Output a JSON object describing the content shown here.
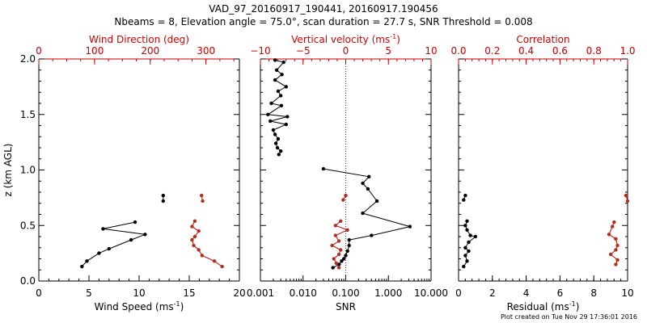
{
  "title_line1": "VAD_97_20160917_190441, 20160917.190456",
  "title_line2": "Nbeams = 8, Elevation angle = 75.0°, scan duration = 27.7 s, SNR Threshold = 0.008",
  "footer": "Plot created on Tue Nov 29 17:36:01 2016",
  "colors": {
    "primary": "#000000",
    "secondary": "#cc0000",
    "secondary_marker": "#b03020"
  },
  "chart_data": [
    {
      "type": "line",
      "ylabel": "z (km AGL)",
      "ylim": [
        0,
        2
      ],
      "yticks": [
        "0.0",
        "0.5",
        "1.0",
        "1.5",
        "2.0"
      ],
      "bottom_axis": {
        "label": "Wind Speed (ms",
        "label_sup": "-1",
        "label_close": ")",
        "lim": [
          0,
          20
        ],
        "ticks": [
          0,
          5,
          10,
          15,
          20
        ],
        "ticklabels": [
          "0",
          "5",
          "10",
          "15",
          "20"
        ]
      },
      "top_axis": {
        "label": "Wind Direction (deg)",
        "label_sup": "",
        "label_close": "",
        "lim": [
          0,
          360
        ],
        "ticks": [
          0,
          100,
          200,
          300
        ],
        "ticklabels": [
          "0",
          "100",
          "200",
          "300"
        ]
      },
      "series": [
        {
          "axis": "bottom",
          "segments": [
            [
              [
                4.3,
                0.13
              ],
              [
                4.8,
                0.18
              ],
              [
                6.0,
                0.25
              ],
              [
                7.0,
                0.29
              ],
              [
                9.2,
                0.37
              ],
              [
                10.6,
                0.42
              ],
              [
                6.4,
                0.47
              ],
              [
                9.6,
                0.53
              ]
            ],
            [
              [
                12.4,
                0.72
              ],
              [
                12.4,
                0.77
              ]
            ]
          ]
        },
        {
          "axis": "top",
          "segments": [
            [
              [
                329,
                0.13
              ],
              [
                315,
                0.18
              ],
              [
                293,
                0.23
              ],
              [
                287,
                0.28
              ],
              [
                278,
                0.32
              ],
              [
                275,
                0.37
              ],
              [
                280,
                0.4
              ],
              [
                287,
                0.45
              ],
              [
                275,
                0.49
              ],
              [
                280,
                0.54
              ]
            ],
            [
              [
                294,
                0.72
              ],
              [
                292,
                0.77
              ]
            ]
          ]
        }
      ]
    },
    {
      "type": "line",
      "ylabel": "",
      "ylim": [
        0,
        2
      ],
      "bottom_axis": {
        "label": "SNR",
        "label_sup": "",
        "label_close": "",
        "log": true,
        "lim": [
          0.001,
          10
        ],
        "ticks": [
          0.001,
          0.01,
          0.1,
          1,
          10
        ],
        "ticklabels": [
          "0.001",
          "0.010",
          "0.100",
          "1.000",
          "10.000"
        ]
      },
      "top_axis": {
        "label": "Vertical velocity (ms",
        "label_sup": "-1",
        "label_close": ")",
        "lim": [
          -10,
          10
        ],
        "ticks": [
          -10,
          -5,
          0,
          5,
          10
        ],
        "ticklabels": [
          "−10",
          "−5",
          "0",
          "5",
          "10"
        ]
      },
      "reference_line": {
        "axis": "bottom",
        "value": 0.1
      },
      "series": [
        {
          "axis": "bottom",
          "segments": [
            [
              [
                0.0022,
                1.99
              ],
              [
                0.0035,
                1.97
              ],
              [
                0.0024,
                1.9
              ],
              [
                0.0032,
                1.86
              ],
              [
                0.0022,
                1.81
              ],
              [
                0.004,
                1.75
              ],
              [
                0.0026,
                1.71
              ],
              [
                0.003,
                1.67
              ],
              [
                0.0018,
                1.6
              ],
              [
                0.0031,
                1.58
              ],
              [
                0.0015,
                1.5
              ],
              [
                0.0043,
                1.48
              ],
              [
                0.0017,
                1.44
              ],
              [
                0.004,
                1.41
              ],
              [
                0.002,
                1.36
              ],
              [
                0.0022,
                1.32
              ],
              [
                0.0026,
                1.28
              ],
              [
                0.0023,
                1.24
              ],
              [
                0.0025,
                1.2
              ],
              [
                0.003,
                1.17
              ],
              [
                0.0027,
                1.14
              ]
            ],
            [
              [
                0.03,
                1.01
              ],
              [
                0.35,
                0.94
              ],
              [
                0.25,
                0.88
              ],
              [
                0.33,
                0.83
              ],
              [
                0.54,
                0.72
              ],
              [
                0.25,
                0.61
              ],
              [
                3.2,
                0.49
              ],
              [
                0.4,
                0.41
              ],
              [
                0.12,
                0.37
              ],
              [
                0.12,
                0.32
              ],
              [
                0.11,
                0.27
              ],
              [
                0.1,
                0.23
              ],
              [
                0.09,
                0.2
              ],
              [
                0.08,
                0.18
              ],
              [
                0.07,
                0.15
              ],
              [
                0.05,
                0.12
              ]
            ]
          ]
        },
        {
          "axis": "top",
          "segments": [
            [
              [
                0.0,
                0.77
              ],
              [
                -0.3,
                0.73
              ]
            ],
            [
              [
                -0.6,
                0.54
              ],
              [
                -1.2,
                0.5
              ],
              [
                0.2,
                0.46
              ],
              [
                -1.2,
                0.41
              ],
              [
                -0.8,
                0.36
              ],
              [
                -1.6,
                0.32
              ],
              [
                -0.6,
                0.28
              ],
              [
                -0.8,
                0.24
              ],
              [
                -1.4,
                0.2
              ],
              [
                -1.1,
                0.16
              ],
              [
                -0.8,
                0.12
              ]
            ]
          ]
        }
      ]
    },
    {
      "type": "line",
      "ylabel": "",
      "ylim": [
        0,
        2
      ],
      "bottom_axis": {
        "label": "Residual (ms",
        "label_sup": "-1",
        "label_close": ")",
        "lim": [
          0,
          10
        ],
        "ticks": [
          0,
          2,
          4,
          6,
          8,
          10
        ],
        "ticklabels": [
          "0",
          "2",
          "4",
          "6",
          "8",
          "10"
        ]
      },
      "top_axis": {
        "label": "Correlation",
        "label_sup": "",
        "label_close": "",
        "lim": [
          0,
          1
        ],
        "ticks": [
          0,
          0.2,
          0.4,
          0.6,
          0.8,
          1.0
        ],
        "ticklabels": [
          "0.0",
          "0.2",
          "0.4",
          "0.6",
          "0.8",
          "1.0"
        ]
      },
      "series": [
        {
          "axis": "bottom",
          "segments": [
            [
              [
                0.4,
                0.77
              ],
              [
                0.3,
                0.73
              ]
            ],
            [
              [
                0.5,
                0.54
              ],
              [
                0.4,
                0.5
              ],
              [
                0.5,
                0.46
              ],
              [
                0.7,
                0.41
              ],
              [
                1.0,
                0.4
              ],
              [
                0.6,
                0.35
              ],
              [
                0.4,
                0.3
              ],
              [
                0.6,
                0.27
              ],
              [
                0.4,
                0.23
              ],
              [
                0.5,
                0.18
              ],
              [
                0.3,
                0.13
              ]
            ]
          ]
        },
        {
          "axis": "top",
          "segments": [
            [
              [
                0.99,
                0.77
              ],
              [
                1.0,
                0.72
              ]
            ],
            [
              [
                0.92,
                0.53
              ],
              [
                0.91,
                0.49
              ],
              [
                0.89,
                0.42
              ],
              [
                0.93,
                0.38
              ],
              [
                0.94,
                0.32
              ],
              [
                0.93,
                0.28
              ],
              [
                0.9,
                0.24
              ],
              [
                0.94,
                0.19
              ],
              [
                0.93,
                0.15
              ]
            ]
          ]
        }
      ]
    }
  ]
}
